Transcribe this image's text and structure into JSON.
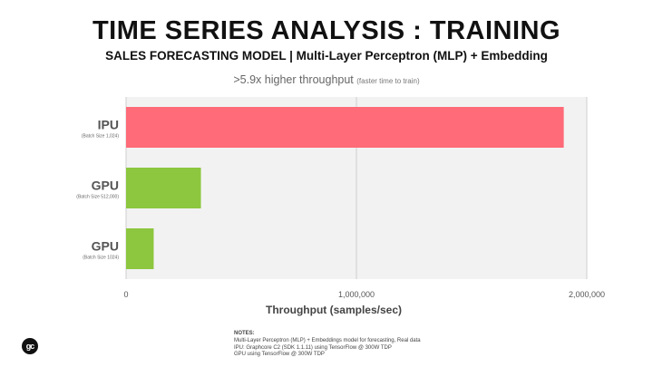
{
  "header": {
    "title": "TIME SERIES ANALYSIS : TRAINING",
    "subtitle": "SALES FORECASTING MODEL | Multi-Layer Perceptron (MLP) + Embedding",
    "headline_main": ">5.9x higher throughput",
    "headline_note": "(faster time to train)"
  },
  "chart_data": {
    "type": "bar",
    "orientation": "horizontal",
    "categories": [
      {
        "label": "IPU",
        "sublabel": "(Batch Size 1,024)"
      },
      {
        "label": "GPU",
        "sublabel": "(Batch Size 512,000)"
      },
      {
        "label": "GPU",
        "sublabel": "(Batch Size 1024)"
      }
    ],
    "values": [
      1900000,
      325000,
      120000
    ],
    "colors": [
      "#ff6b78",
      "#8dc63f",
      "#8dc63f"
    ],
    "xlabel": "Throughput (samples/sec)",
    "xlim": [
      0,
      2000000
    ],
    "xticks": [
      0,
      1000000,
      2000000
    ],
    "xtick_labels": [
      "0",
      "1,000,000",
      "2,000,000"
    ],
    "grid": "vertical",
    "plot_background": "#f2f2f2"
  },
  "notes": {
    "title": "NOTES:",
    "lines": [
      "Multi-Layer Perceptron (MLP) + Embeddings model for forecasting, Real data",
      "IPU: Graphcore C2  (SDK 1.1.11) using TensorFlow  @ 300W TDP",
      "GPU using TensorFlow @ 300W TDP"
    ]
  },
  "logo": {
    "text": "gc"
  }
}
